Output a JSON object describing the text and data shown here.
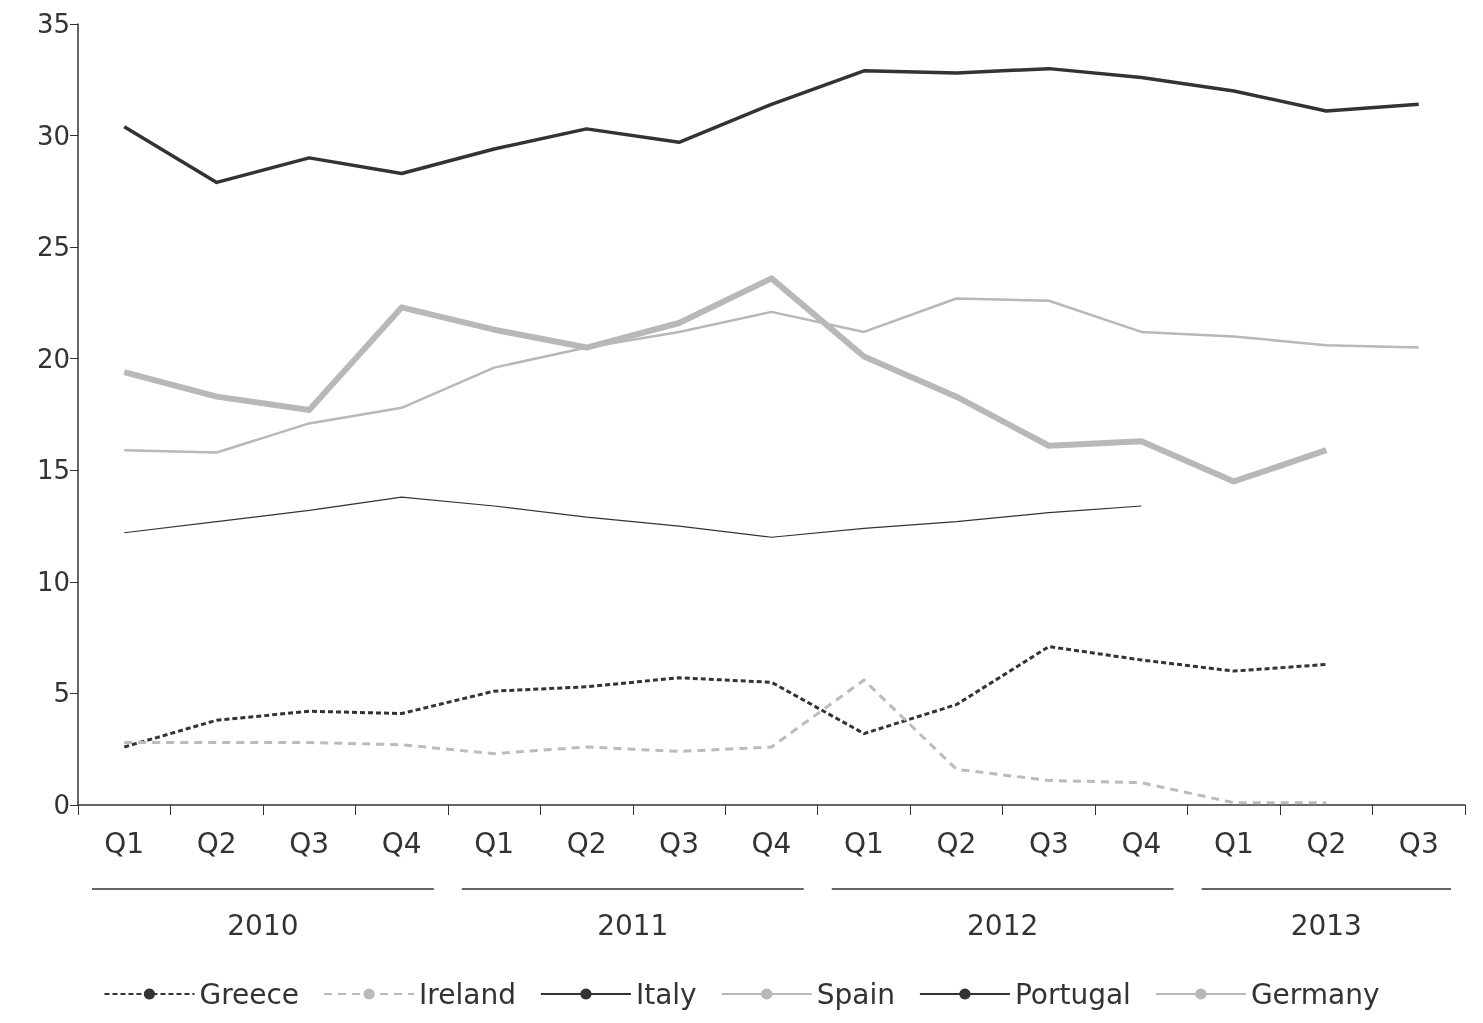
{
  "chart_data": {
    "type": "line",
    "categories": [
      "Q1",
      "Q2",
      "Q3",
      "Q4",
      "Q1",
      "Q2",
      "Q3",
      "Q4",
      "Q1",
      "Q2",
      "Q3",
      "Q4",
      "Q1",
      "Q2",
      "Q3"
    ],
    "annotations": [
      "2010",
      "2011",
      "2012",
      "2013"
    ],
    "ylim": [
      0,
      35
    ],
    "yticks": [
      0,
      5,
      10,
      15,
      20,
      25,
      30,
      35
    ],
    "grid": false,
    "legend": "bottom",
    "marker": "none",
    "series": [
      {
        "name": "Greece",
        "color": "#333333",
        "line_style": "dotted",
        "values": [
          2.6,
          3.8,
          4.2,
          4.1,
          5.1,
          5.3,
          5.7,
          5.5,
          3.2,
          4.5,
          7.1,
          6.5,
          6.0,
          6.3,
          null
        ]
      },
      {
        "name": "Ireland",
        "color": "#bbbbbb",
        "line_style": "dashed",
        "values": [
          2.8,
          2.8,
          2.8,
          2.7,
          2.3,
          2.6,
          2.4,
          2.6,
          5.6,
          1.6,
          1.1,
          1.0,
          0.1,
          0.1,
          null
        ]
      },
      {
        "name": "Italy",
        "color": "#333333",
        "line_style": "solid",
        "values": [
          30.4,
          27.9,
          29.0,
          28.3,
          29.4,
          30.3,
          29.7,
          31.4,
          32.9,
          32.8,
          33.0,
          32.6,
          32.0,
          31.1,
          31.4
        ]
      },
      {
        "name": "Spain",
        "color": "#b8b8b8",
        "line_style": "solid",
        "values": [
          15.9,
          15.8,
          17.1,
          17.8,
          19.6,
          20.5,
          21.2,
          22.1,
          21.2,
          22.7,
          22.6,
          21.2,
          21.0,
          20.6,
          20.5
        ]
      },
      {
        "name": "Portugal",
        "color": "#333333",
        "line_style": "solid",
        "values": [
          12.2,
          12.7,
          13.2,
          13.8,
          13.4,
          12.9,
          12.5,
          12.0,
          12.4,
          12.7,
          13.1,
          13.4,
          null,
          null,
          null
        ]
      },
      {
        "name": "Germany",
        "color": "#b8b8b8",
        "line_style": "solid",
        "values": [
          19.4,
          18.3,
          17.7,
          22.3,
          21.3,
          20.5,
          21.6,
          23.6,
          20.1,
          18.3,
          16.1,
          16.3,
          14.5,
          15.9,
          null
        ]
      }
    ]
  }
}
